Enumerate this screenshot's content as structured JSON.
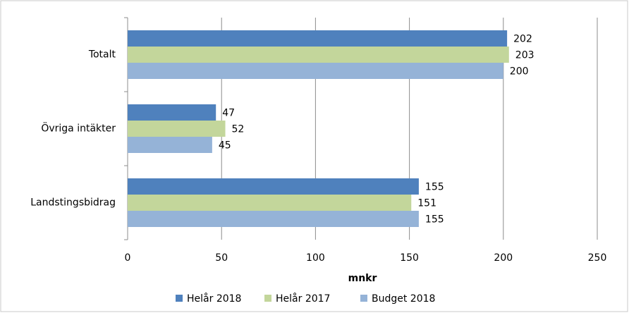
{
  "chart_data": {
    "type": "hbar",
    "x_label": "mnkr",
    "categories": [
      "Totalt",
      "Övriga intäkter",
      "Landstingsbidrag"
    ],
    "series": [
      {
        "name": "Helår 2018",
        "color": "#4f81bd",
        "values": [
          202,
          47,
          155
        ]
      },
      {
        "name": "Helår 2017",
        "color": "#c3d69b",
        "values": [
          203,
          52,
          151
        ]
      },
      {
        "name": "Budget 2018",
        "color": "#95b3d7",
        "values": [
          200,
          45,
          155
        ]
      }
    ],
    "xlim": [
      0,
      250
    ],
    "xticks": [
      0,
      50,
      100,
      150,
      200,
      250
    ],
    "grid": true,
    "legend": "bottom"
  }
}
